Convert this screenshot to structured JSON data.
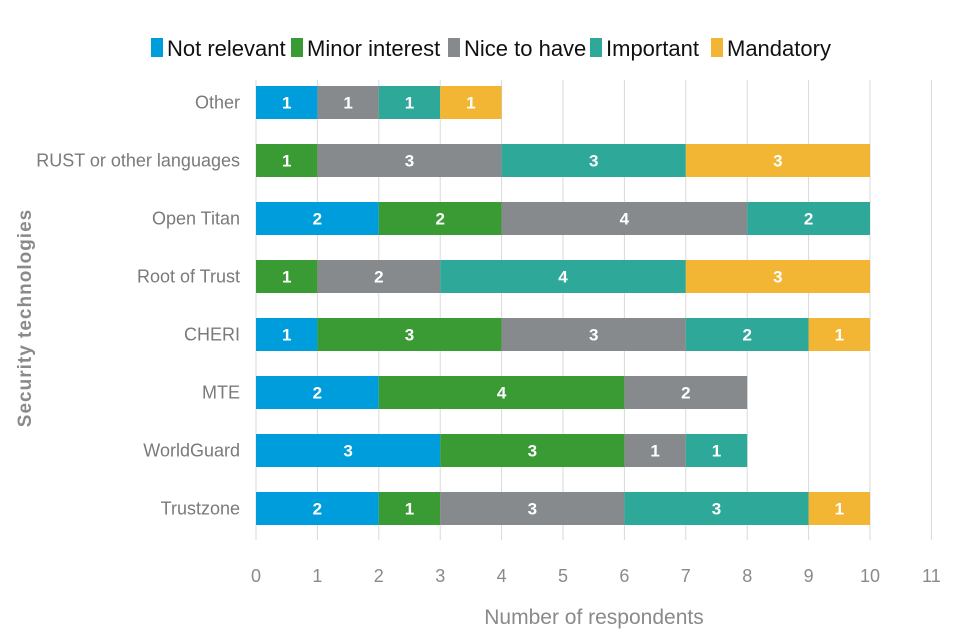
{
  "chart_data": {
    "type": "bar",
    "orientation": "horizontal",
    "stacked": true,
    "title": "",
    "xlabel": "Number of respondents",
    "ylabel": "Security technologies",
    "xlim": [
      0,
      11
    ],
    "xticks": [
      "0",
      "1",
      "2",
      "3",
      "4",
      "5",
      "6",
      "7",
      "8",
      "9",
      "10",
      "11"
    ],
    "grid": "vertical",
    "legend_position": "top",
    "categories": [
      "Other",
      "RUST or other languages",
      "Open Titan",
      "Root of Trust",
      "CHERI",
      "MTE",
      "WorldGuard",
      "Trustzone"
    ],
    "series": [
      {
        "name": "Not relevant",
        "color": "#009ddc",
        "values": [
          1,
          0,
          2,
          0,
          1,
          2,
          3,
          2
        ]
      },
      {
        "name": "Minor interest",
        "color": "#3a9b35",
        "values": [
          0,
          1,
          2,
          1,
          3,
          4,
          3,
          1
        ]
      },
      {
        "name": "Nice to have",
        "color": "#878a8c",
        "values": [
          1,
          3,
          4,
          2,
          3,
          2,
          1,
          3
        ]
      },
      {
        "name": "Important",
        "color": "#2ea899",
        "values": [
          1,
          3,
          2,
          4,
          2,
          0,
          1,
          3
        ]
      },
      {
        "name": "Mandatory",
        "color": "#f2b534",
        "values": [
          1,
          3,
          0,
          3,
          1,
          0,
          0,
          1
        ]
      }
    ]
  }
}
